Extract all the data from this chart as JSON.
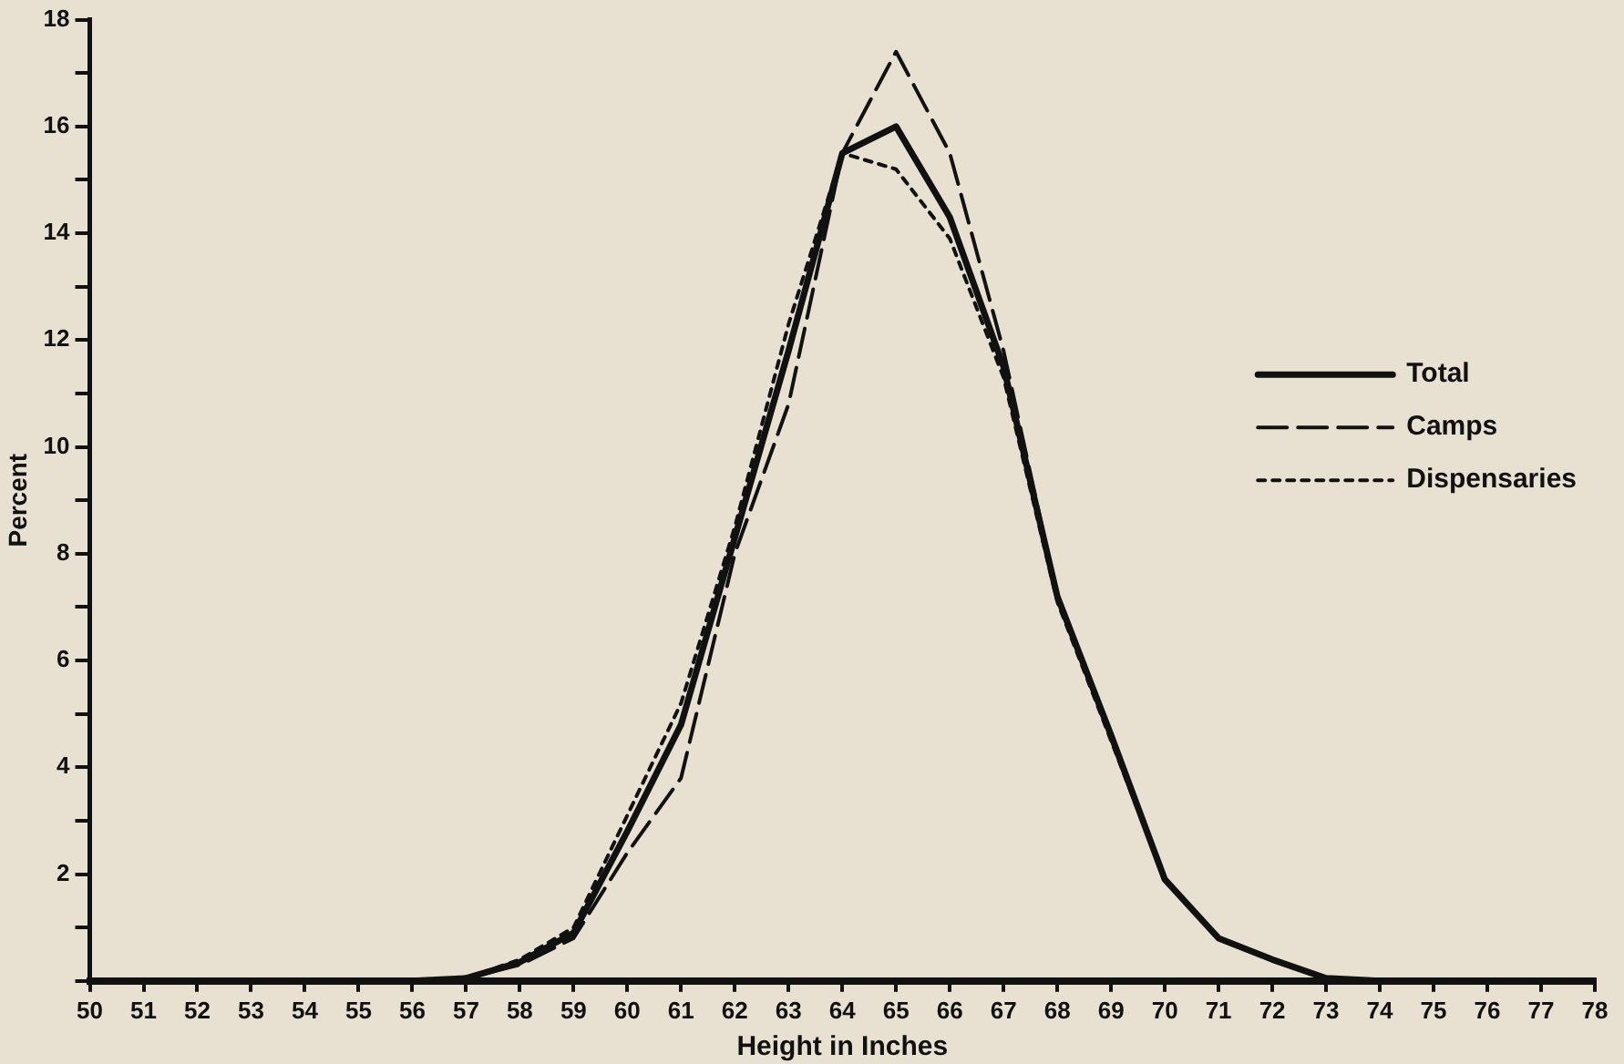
{
  "chart_data": {
    "type": "line",
    "xlabel": "Height in Inches",
    "ylabel": "Percent",
    "x": [
      50,
      51,
      52,
      53,
      54,
      55,
      56,
      57,
      58,
      59,
      60,
      61,
      62,
      63,
      64,
      65,
      66,
      67,
      68,
      69,
      70,
      71,
      72,
      73,
      74,
      75,
      76,
      77,
      78
    ],
    "series": [
      {
        "name": "Total",
        "color": "#111111",
        "line_style": "solid",
        "values": [
          0,
          0,
          0,
          0,
          0,
          0,
          0,
          0.05,
          0.35,
          0.9,
          2.8,
          4.8,
          8.3,
          11.8,
          15.5,
          16.0,
          14.3,
          11.5,
          7.2,
          4.6,
          1.9,
          0.8,
          0.4,
          0.05,
          0,
          0,
          0,
          0,
          0
        ]
      },
      {
        "name": "Camps",
        "color": "#111111",
        "line_style": "dashed",
        "values": [
          0,
          0,
          0,
          0,
          0,
          0,
          0,
          0.05,
          0.3,
          0.8,
          2.4,
          3.8,
          8.0,
          10.8,
          15.5,
          17.4,
          15.5,
          11.8,
          7.2,
          4.6,
          1.9,
          0.8,
          0.4,
          0.05,
          0,
          0,
          0,
          0,
          0
        ]
      },
      {
        "name": "Dispensaries",
        "color": "#111111",
        "line_style": "dotted",
        "values": [
          0,
          0,
          0,
          0,
          0,
          0,
          0,
          0.05,
          0.4,
          1.0,
          3.1,
          5.2,
          8.5,
          12.3,
          15.5,
          15.2,
          13.9,
          11.3,
          7.1,
          4.5,
          1.9,
          0.8,
          0.4,
          0.05,
          0,
          0,
          0,
          0,
          0
        ]
      }
    ],
    "xlim": [
      50,
      78
    ],
    "xticks": [
      50,
      51,
      52,
      53,
      54,
      55,
      56,
      57,
      58,
      59,
      60,
      61,
      62,
      63,
      64,
      65,
      66,
      67,
      68,
      69,
      70,
      71,
      72,
      73,
      74,
      75,
      76,
      77,
      78
    ],
    "ylim": [
      0,
      18
    ],
    "yticks": [
      {
        "value": 0,
        "label": null
      },
      {
        "value": 1,
        "label": null
      },
      2,
      {
        "value": 3,
        "label": null
      },
      4,
      {
        "value": 5,
        "label": null
      },
      6,
      {
        "value": 7,
        "label": null
      },
      8,
      {
        "value": 9,
        "label": null
      },
      10,
      {
        "value": 11,
        "label": null
      },
      12,
      {
        "value": 13,
        "label": null
      },
      14,
      {
        "value": 15,
        "label": null
      },
      16,
      {
        "value": 17,
        "label": null
      },
      18
    ],
    "grid": false,
    "legend": "right",
    "marker": "none"
  }
}
